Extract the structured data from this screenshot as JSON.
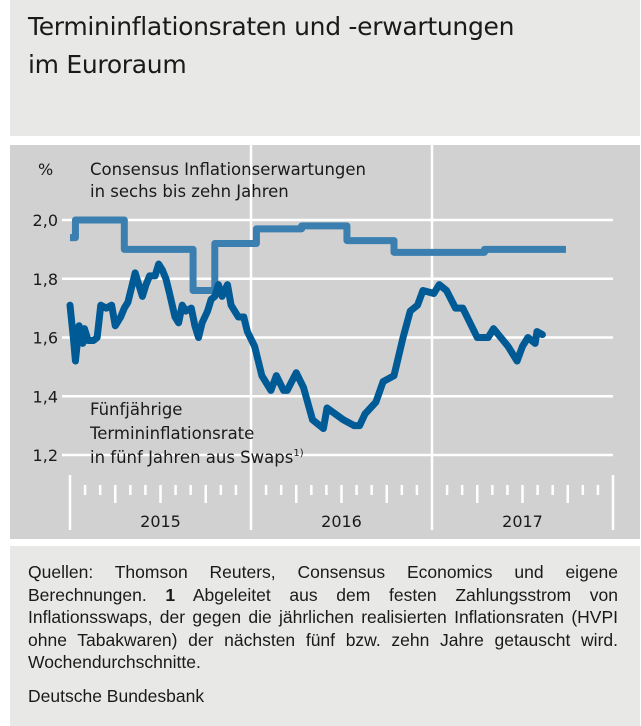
{
  "header": {
    "title_line1": "Termininflationsraten und -erwartungen",
    "title_line2": "im Euroraum"
  },
  "colors": {
    "consensus": "#3a7fb0",
    "forward": "#005a96",
    "panel_bg": "#d1d1d1",
    "header_bg": "#e8e8e7",
    "grid": "#ffffff"
  },
  "chart_data": {
    "type": "line",
    "title": "Termininflationsraten und -erwartungen im Euroraum",
    "ylabel": "%",
    "xlabel": "",
    "ylim": [
      1.2,
      2.0
    ],
    "xlim": [
      2015.0,
      2018.0
    ],
    "y_ticks": [
      {
        "value": 2.0,
        "label": "2,0"
      },
      {
        "value": 1.8,
        "label": "1,8"
      },
      {
        "value": 1.6,
        "label": "1,6"
      },
      {
        "value": 1.4,
        "label": "1,4"
      },
      {
        "value": 1.2,
        "label": "1,2"
      }
    ],
    "x_year_labels": [
      {
        "value": 2015.5,
        "label": "2015"
      },
      {
        "value": 2016.5,
        "label": "2016"
      },
      {
        "value": 2017.5,
        "label": "2017"
      }
    ],
    "x_year_boundaries": [
      2015.0,
      2016.0,
      2017.0,
      2018.0
    ],
    "grid": true,
    "series": [
      {
        "name": "Consensus Inflationserwartungen in sechs bis zehn Jahren",
        "label_line1": "Consensus Inflationserwartungen",
        "label_line2": "in sechs bis zehn Jahren",
        "style": "step",
        "x": [
          2015.0,
          2015.03,
          2015.3,
          2015.68,
          2015.8,
          2016.03,
          2016.28,
          2016.53,
          2016.79,
          2017.0,
          2017.29,
          2017.74
        ],
        "values": [
          1.94,
          2.0,
          1.9,
          1.76,
          1.92,
          1.97,
          1.98,
          1.93,
          1.89,
          1.89,
          1.9,
          1.9
        ]
      },
      {
        "name": "Fünfjährige Termininflationsrate in fünf Jahren aus Swaps",
        "label_line1": "Fünfjährige",
        "label_line2": "Termininflationsrate",
        "label_line3": "in fünf Jahren aus Swaps",
        "label_footnote": "1)",
        "style": "line",
        "x": [
          2015.0,
          2015.02,
          2015.03,
          2015.05,
          2015.07,
          2015.08,
          2015.1,
          2015.13,
          2015.15,
          2015.17,
          2015.2,
          2015.23,
          2015.25,
          2015.28,
          2015.3,
          2015.32,
          2015.34,
          2015.36,
          2015.38,
          2015.4,
          2015.42,
          2015.44,
          2015.47,
          2015.49,
          2015.51,
          2015.53,
          2015.55,
          2015.58,
          2015.6,
          2015.62,
          2015.64,
          2015.67,
          2015.69,
          2015.71,
          2015.73,
          2015.76,
          2015.78,
          2015.8,
          2015.82,
          2015.84,
          2015.87,
          2015.89,
          2015.91,
          2015.93,
          2015.96,
          2015.98,
          2016.02,
          2016.06,
          2016.11,
          2016.14,
          2016.18,
          2016.2,
          2016.25,
          2016.29,
          2016.34,
          2016.4,
          2016.42,
          2016.51,
          2016.57,
          2016.6,
          2016.63,
          2016.69,
          2016.73,
          2016.79,
          2016.84,
          2016.88,
          2016.92,
          2016.95,
          2017.01,
          2017.04,
          2017.08,
          2017.13,
          2017.17,
          2017.25,
          2017.31,
          2017.34,
          2017.42,
          2017.47,
          2017.5,
          2017.53,
          2017.57,
          2017.58,
          2017.61
        ],
        "values": [
          1.71,
          1.59,
          1.52,
          1.64,
          1.58,
          1.63,
          1.59,
          1.59,
          1.6,
          1.71,
          1.7,
          1.71,
          1.64,
          1.67,
          1.7,
          1.72,
          1.77,
          1.82,
          1.78,
          1.74,
          1.78,
          1.81,
          1.81,
          1.85,
          1.83,
          1.8,
          1.75,
          1.67,
          1.65,
          1.71,
          1.69,
          1.7,
          1.64,
          1.6,
          1.65,
          1.69,
          1.73,
          1.74,
          1.78,
          1.74,
          1.78,
          1.71,
          1.69,
          1.67,
          1.67,
          1.62,
          1.57,
          1.47,
          1.42,
          1.47,
          1.42,
          1.42,
          1.48,
          1.43,
          1.32,
          1.29,
          1.36,
          1.32,
          1.3,
          1.3,
          1.34,
          1.38,
          1.45,
          1.47,
          1.6,
          1.69,
          1.71,
          1.76,
          1.75,
          1.78,
          1.76,
          1.7,
          1.7,
          1.6,
          1.6,
          1.63,
          1.57,
          1.52,
          1.57,
          1.6,
          1.58,
          1.62,
          1.61
        ]
      }
    ],
    "footnote_marker": "1)"
  },
  "footer": {
    "notes_part1": "Quellen: Thomson Reuters, Consensus Economics und eigene Berechnungen. ",
    "notes_bold": "1",
    "notes_part2": " Abgeleitet aus dem festen Zahlungsstrom von Inflationsswaps, der gegen die jährlichen realisierten Infla­tionsraten (HVPI ohne Tabakwaren) der nächsten fünf bzw. zehn Jahre getauscht wird. Wochendurchschnitte.",
    "source": "Deutsche Bundesbank"
  }
}
